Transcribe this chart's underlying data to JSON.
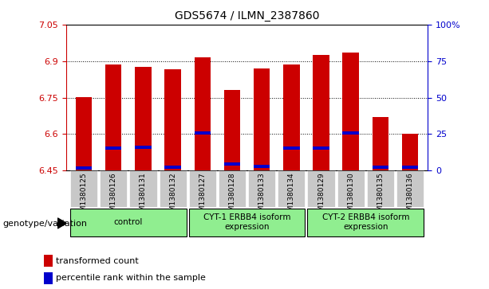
{
  "title": "GDS5674 / ILMN_2387860",
  "samples": [
    "GSM1380125",
    "GSM1380126",
    "GSM1380131",
    "GSM1380132",
    "GSM1380127",
    "GSM1380128",
    "GSM1380133",
    "GSM1380134",
    "GSM1380129",
    "GSM1380130",
    "GSM1380135",
    "GSM1380136"
  ],
  "bar_values": [
    6.753,
    6.885,
    6.876,
    6.866,
    6.915,
    6.782,
    6.87,
    6.885,
    6.925,
    6.935,
    6.67,
    6.6
  ],
  "blue_values": [
    6.455,
    6.535,
    6.54,
    6.456,
    6.597,
    6.47,
    6.462,
    6.535,
    6.535,
    6.597,
    6.456,
    6.456
  ],
  "ymin": 6.45,
  "ymax": 7.05,
  "yticks": [
    6.45,
    6.6,
    6.75,
    6.9,
    7.05
  ],
  "ytick_labels": [
    "6.45",
    "6.6",
    "6.75",
    "6.9",
    "7.05"
  ],
  "right_yticks": [
    0.0,
    0.25,
    0.5,
    0.75,
    1.0
  ],
  "right_ytick_labels": [
    "0",
    "25",
    "50",
    "75",
    "100%"
  ],
  "grid_lines": [
    6.6,
    6.75,
    6.9
  ],
  "bar_color": "#cc0000",
  "blue_color": "#0000cc",
  "group_data": [
    {
      "start": 0,
      "end": 3,
      "label": "control"
    },
    {
      "start": 4,
      "end": 7,
      "label": "CYT-1 ERBB4 isoform\nexpression"
    },
    {
      "start": 8,
      "end": 11,
      "label": "CYT-2 ERBB4 isoform\nexpression"
    }
  ],
  "genotype_label": "genotype/variation",
  "legend_red": "transformed count",
  "legend_blue": "percentile rank within the sample",
  "tick_bg_color": "#c8c8c8",
  "group_bg_color": "#90ee90",
  "left_axis_color": "#cc0000",
  "right_axis_color": "#0000cc"
}
